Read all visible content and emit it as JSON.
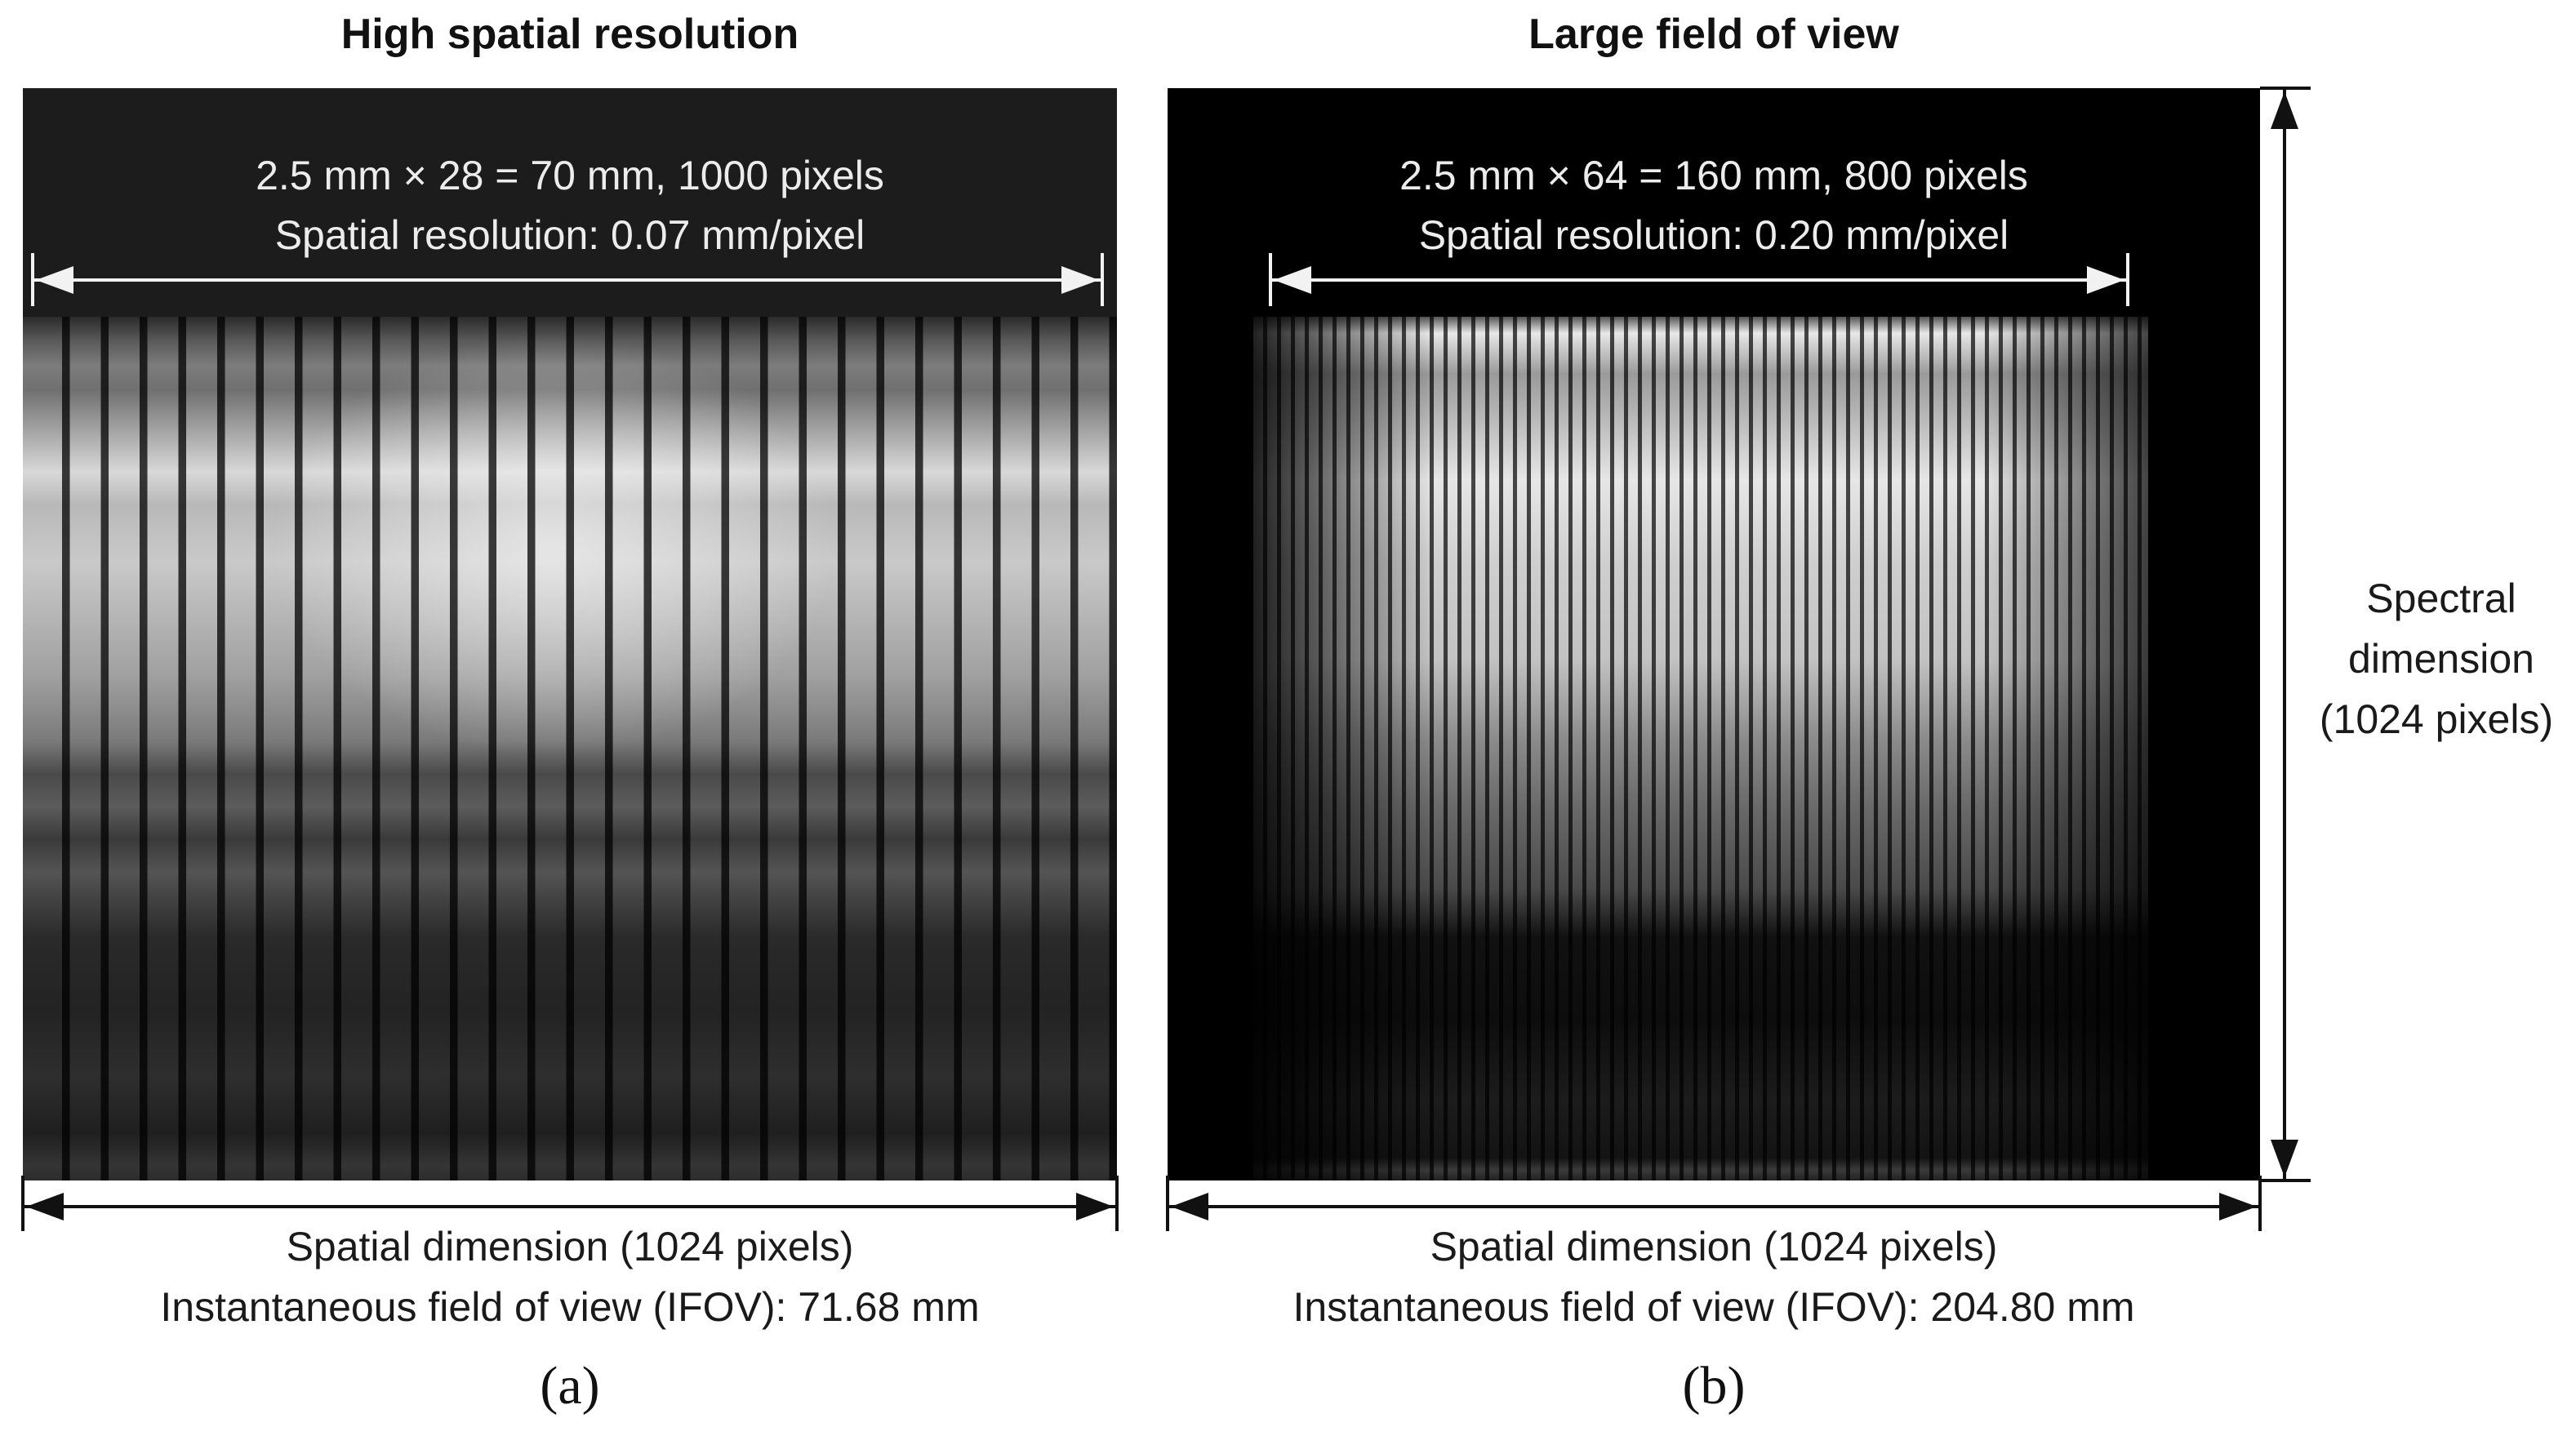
{
  "panel_a": {
    "heading": "High spatial resolution",
    "image_line1": "2.5 mm × 28 = 70 mm, 1000 pixels",
    "image_line2": "Spatial resolution: 0.07 mm/pixel",
    "caption_line1": "Spatial dimension (1024 pixels)",
    "caption_line2": "Instantaneous field of view (IFOV): 71.68 mm",
    "letter": "(a)"
  },
  "panel_b": {
    "heading": "Large field of view",
    "image_line1": "2.5 mm × 64 = 160 mm, 800 pixels",
    "image_line2": "Spatial resolution: 0.20 mm/pixel",
    "caption_line1": "Spatial dimension (1024 pixels)",
    "caption_line2": "Instantaneous field of view (IFOV): 204.80 mm",
    "letter": "(b)"
  },
  "spectral": {
    "line1": "Spectral",
    "line2": "dimension",
    "line3": "(1024 pixels)"
  },
  "colors": {
    "arrow_dark": "#111111",
    "arrow_light": "#f2f2f2"
  }
}
